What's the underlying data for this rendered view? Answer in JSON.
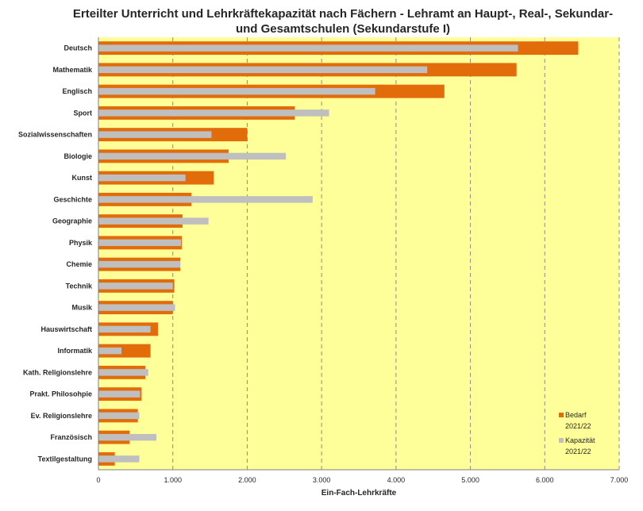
{
  "chart_data": {
    "type": "bar",
    "orientation": "horizontal",
    "title_line1": "Erteilter Unterricht und Lehrkräftekapazität nach Fächern - Lehramt an Haupt-, Real-, Sekundar-",
    "title_line2": "und Gesamtschulen (Sekundarstufe I)",
    "xlabel": "Ein-Fach-Lehrkräfte",
    "ylabel": "",
    "xlim": [
      0,
      7000
    ],
    "x_ticks": [
      "0",
      "1.000",
      "2.000",
      "3.000",
      "4.000",
      "5.000",
      "6.000",
      "7.000"
    ],
    "grid": "vertical dashed",
    "legend_position": "bottom-right",
    "colors": {
      "plot_background": "#ffff99",
      "bedarf": "#e26b0a",
      "kapazitaet": "#bfbfbf",
      "gridline": "#8c8c8c"
    },
    "categories": [
      "Deutsch",
      "Mathematik",
      "Englisch",
      "Sport",
      "Sozialwissenschaften",
      "Biologie",
      "Kunst",
      "Geschichte",
      "Geographie",
      "Physik",
      "Chemie",
      "Technik",
      "Musik",
      "Hauswirtschaft",
      "Informatik",
      "Kath. Religionslehre",
      "Prakt. Philosohpie",
      "Ev. Religionslehre",
      "Französisch",
      "Textilgestaltung"
    ],
    "series": [
      {
        "name_line1": "Bedarf",
        "name_line2": "2021/22",
        "values": [
          6450,
          5620,
          4650,
          2640,
          2000,
          1750,
          1550,
          1250,
          1130,
          1120,
          1100,
          1020,
          1000,
          800,
          700,
          630,
          580,
          530,
          420,
          220
        ]
      },
      {
        "name_line1": "Kapazität",
        "name_line2": "2021/22",
        "values": [
          5640,
          4420,
          3720,
          3100,
          1520,
          2520,
          1170,
          2880,
          1480,
          1110,
          1100,
          1000,
          1030,
          700,
          310,
          670,
          560,
          550,
          780,
          550
        ]
      }
    ]
  }
}
